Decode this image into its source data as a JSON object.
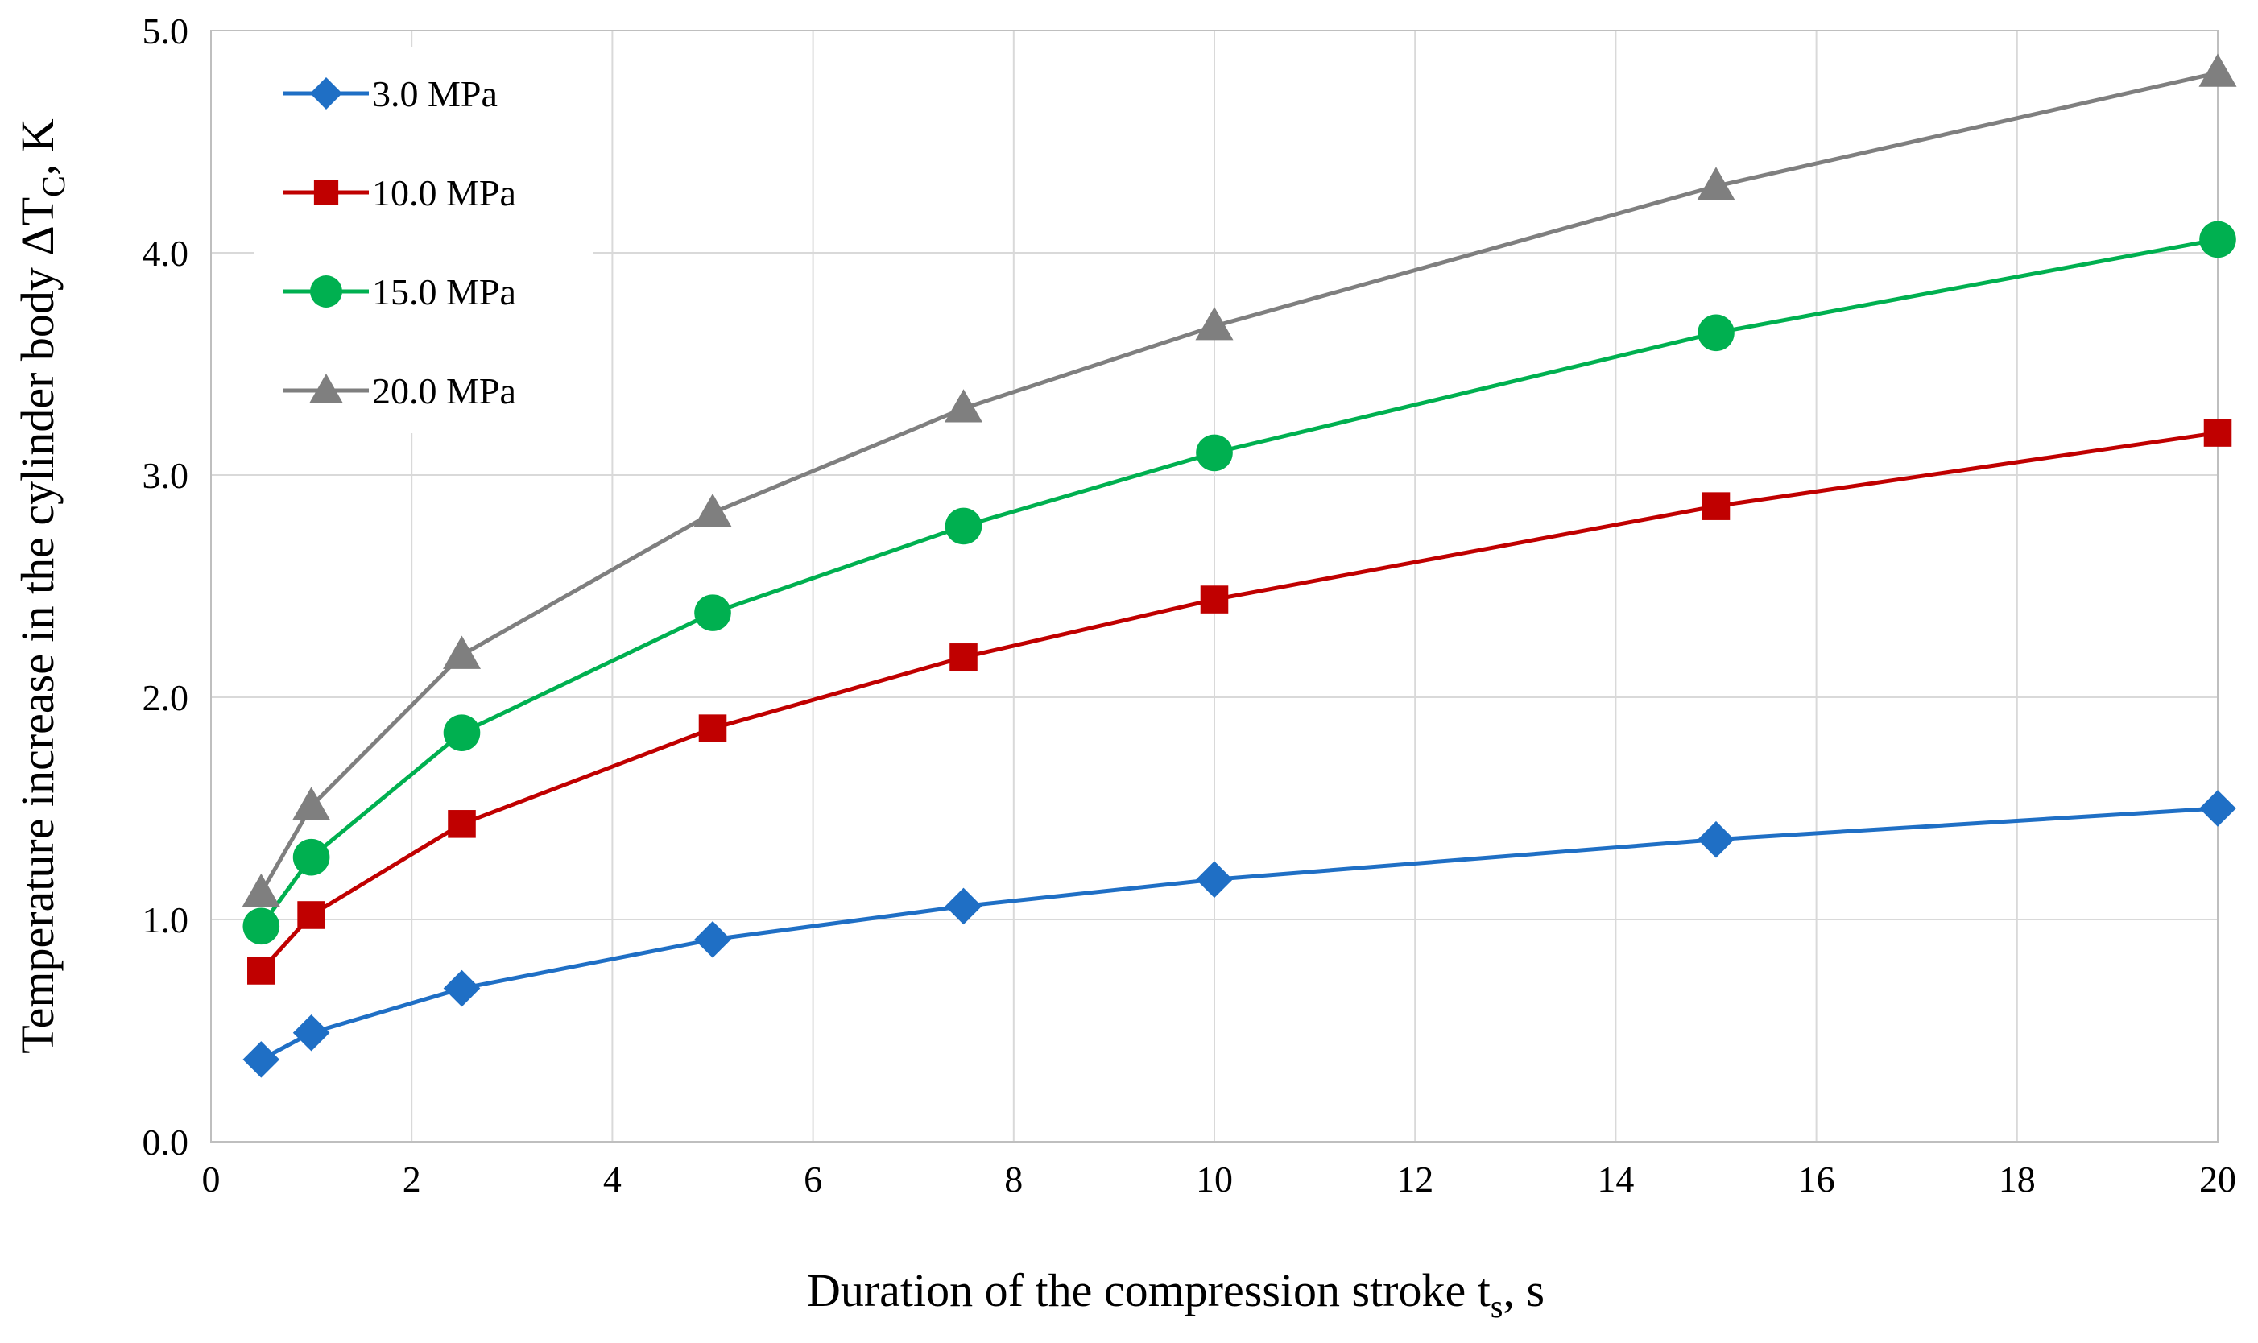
{
  "chart_data": {
    "type": "line",
    "title": "",
    "x": [
      0.5,
      1,
      2.5,
      5,
      7.5,
      10,
      15,
      20
    ],
    "xlim": [
      0,
      20
    ],
    "ylim": [
      0,
      5
    ],
    "x_ticks": [
      0,
      2,
      4,
      6,
      8,
      10,
      12,
      14,
      16,
      18,
      20
    ],
    "y_ticks": [
      0,
      1,
      2,
      3,
      4,
      5
    ],
    "x_tick_labels": [
      "0",
      "2",
      "4",
      "6",
      "8",
      "10",
      "12",
      "14",
      "16",
      "18",
      "20"
    ],
    "y_tick_labels": [
      "0.0",
      "1.0",
      "2.0",
      "3.0",
      "4.0",
      "5.0"
    ],
    "xlabel": {
      "main": "Duration of the compression stroke t",
      "sub": "s",
      "suffix": ", s"
    },
    "ylabel": {
      "main": "Temperature increase in the cylinder body ΔT",
      "sub": "C",
      "suffix": ", K"
    },
    "grid": true,
    "legend_position": "top-left",
    "series": [
      {
        "name": "3.0 MPa",
        "color": "#1f6fc5",
        "marker": "diamond",
        "values": [
          0.37,
          0.49,
          0.69,
          0.91,
          1.06,
          1.18,
          1.36,
          1.5
        ]
      },
      {
        "name": "10.0 MPa",
        "color": "#c00000",
        "marker": "square",
        "values": [
          0.77,
          1.02,
          1.43,
          1.86,
          2.18,
          2.44,
          2.86,
          3.19
        ]
      },
      {
        "name": "15.0 MPa",
        "color": "#00b050",
        "marker": "circle",
        "values": [
          0.97,
          1.28,
          1.84,
          2.38,
          2.77,
          3.1,
          3.64,
          4.06
        ]
      },
      {
        "name": "20.0 MPa",
        "color": "#7f7f7f",
        "marker": "triangle",
        "values": [
          1.12,
          1.51,
          2.19,
          2.83,
          3.3,
          3.67,
          4.3,
          4.81
        ]
      }
    ]
  }
}
